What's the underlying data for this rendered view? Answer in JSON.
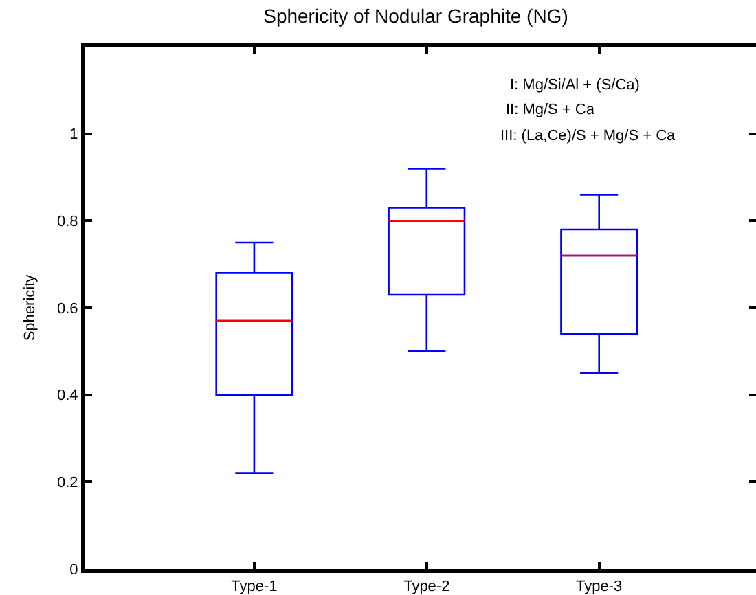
{
  "chart_data": {
    "type": "box",
    "title": "Sphericity of Nodular Graphite (NG)",
    "ylabel": "Sphericity",
    "categories": [
      "Type-1",
      "Type-2",
      "Type-3"
    ],
    "series": [
      {
        "color": "#0000ff",
        "boxes": [
          {
            "low": 0.22,
            "q1": 0.4,
            "median": 0.57,
            "q3": 0.68,
            "high": 0.75
          },
          {
            "low": 0.5,
            "q1": 0.63,
            "median": 0.8,
            "q3": 0.83,
            "high": 0.92
          },
          {
            "low": 0.45,
            "q1": 0.54,
            "median": 0.72,
            "q3": 0.78,
            "high": 0.86
          }
        ]
      }
    ],
    "ylim": [
      0,
      1.2
    ],
    "yticks": [
      0,
      0.2,
      0.4,
      0.6,
      0.8,
      1
    ],
    "annotations": [
      "I: Mg/Si/Al + (S/Ca)",
      "II: Mg/S + Ca",
      "III: (La,Ce)/S + Mg/S + Ca"
    ],
    "tick_labels": "xy"
  }
}
